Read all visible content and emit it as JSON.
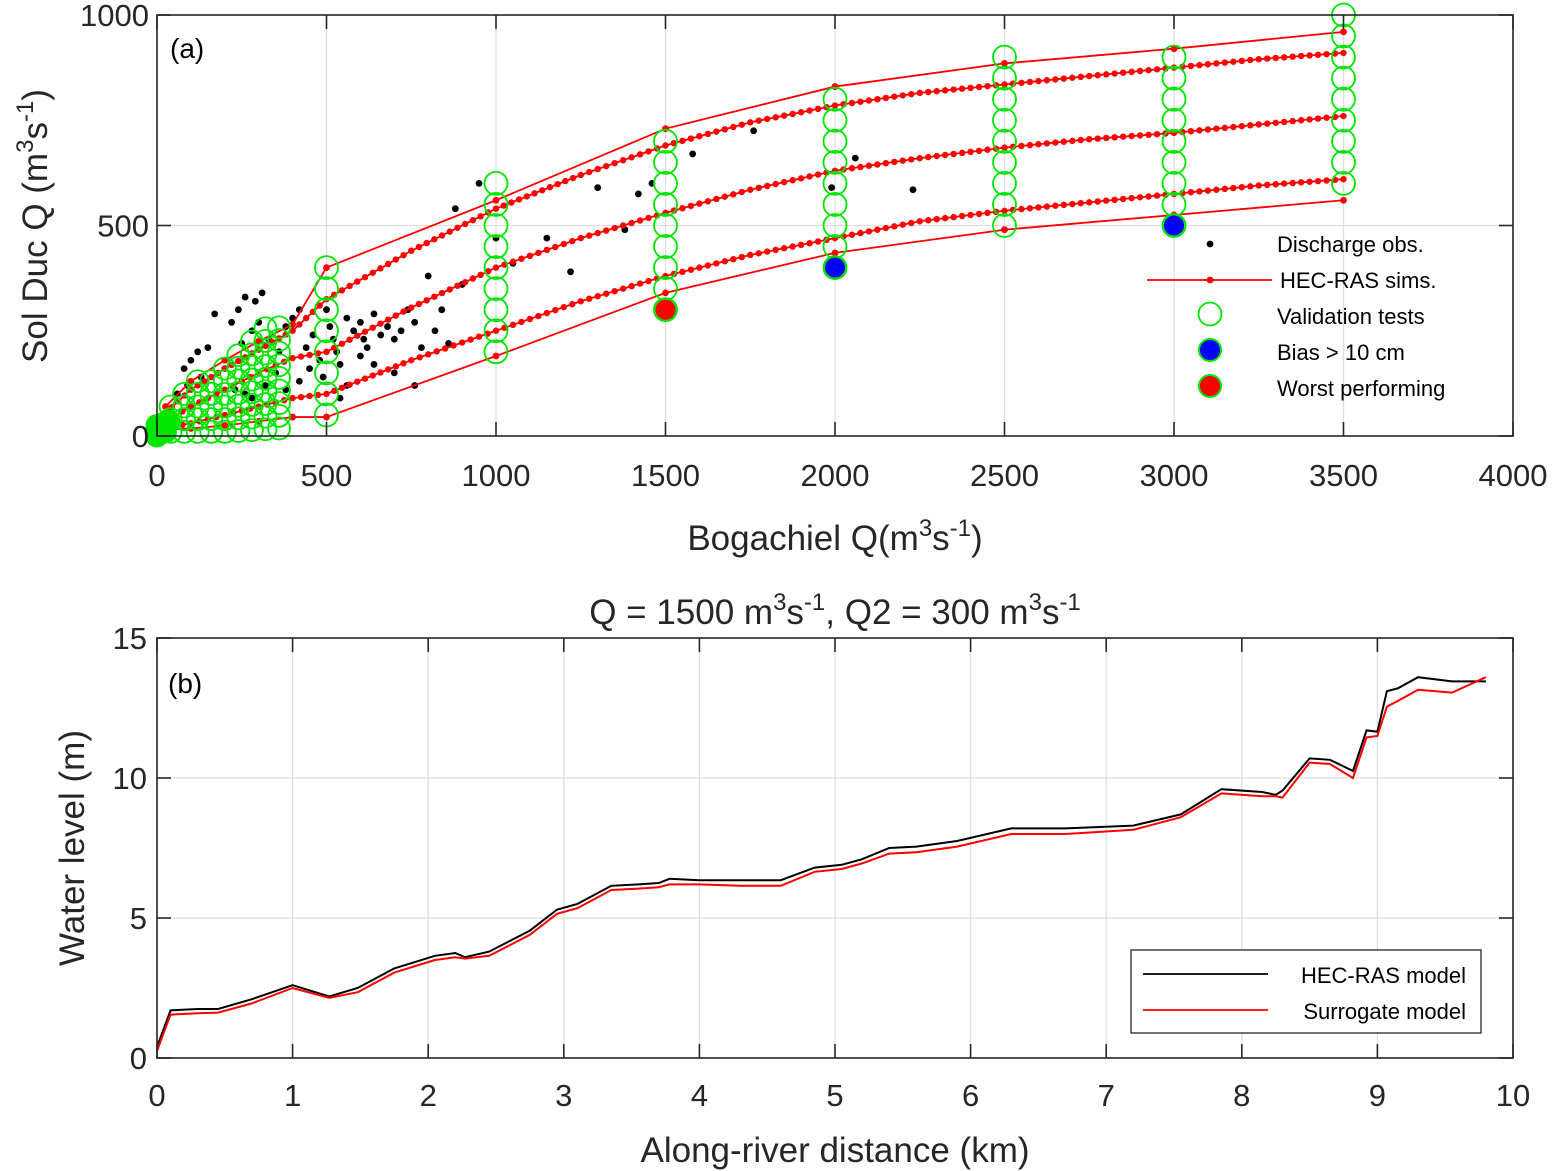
{
  "chart_data": [
    {
      "id": "a",
      "type": "scatter",
      "panel_tag": "(a)",
      "title": "",
      "xlabel": "Bogachiel Q(m^3s^-1)",
      "xlabel_parts": [
        "Bogachiel Q(m",
        "3",
        "s",
        "-1",
        ")"
      ],
      "ylabel": "Sol Duc Q (m^3s^-1)",
      "ylabel_parts": [
        "Sol Duc Q (m",
        "3",
        "s",
        "-1",
        ")"
      ],
      "xlim": [
        0,
        4000
      ],
      "ylim": [
        0,
        1000
      ],
      "xticks": [
        0,
        500,
        1000,
        1500,
        2000,
        2500,
        3000,
        3500,
        4000
      ],
      "yticks": [
        0,
        500,
        1000
      ],
      "grid": true,
      "legend_position": "right-middle",
      "legend": [
        {
          "label": "Discharge obs.",
          "marker": "black-dot"
        },
        {
          "label": "HEC-RAS sims.",
          "marker": "red-line-dot"
        },
        {
          "label": "Validation tests",
          "marker": "green-open-circle"
        },
        {
          "label": "Bias > 10 cm",
          "marker": "blue-filled-circle"
        },
        {
          "label": "Worst performing",
          "marker": "red-filled-circle"
        }
      ],
      "colors": {
        "obs": "#000000",
        "sims": "#ff0000",
        "validation": "#00e600",
        "bias": "#0000ff",
        "worst": "#ff0000"
      },
      "series": [
        {
          "name": "HEC-RAS sims. upper envelope",
          "style": "sparse",
          "x": [
            25,
            100,
            200,
            300,
            400,
            500,
            1000,
            1500,
            2000,
            2500,
            3000,
            3500
          ],
          "y": [
            70,
            130,
            180,
            225,
            265,
            400,
            560,
            730,
            830,
            885,
            920,
            960
          ]
        },
        {
          "name": "HEC-RAS sims. high",
          "style": "dense",
          "x": [
            25,
            100,
            200,
            300,
            400,
            500,
            750,
            1000,
            1250,
            1500,
            1750,
            2000,
            2250,
            2500,
            2750,
            3000,
            3250,
            3500
          ],
          "y": [
            55,
            110,
            160,
            205,
            250,
            325,
            440,
            540,
            620,
            690,
            745,
            785,
            815,
            835,
            855,
            875,
            895,
            910
          ]
        },
        {
          "name": "HEC-RAS sims. mid",
          "style": "dense",
          "x": [
            25,
            100,
            200,
            300,
            400,
            500,
            750,
            1000,
            1250,
            1500,
            1750,
            2000,
            2250,
            2500,
            2750,
            3000,
            3250,
            3500
          ],
          "y": [
            35,
            70,
            110,
            150,
            185,
            200,
            305,
            400,
            470,
            530,
            585,
            630,
            660,
            685,
            705,
            720,
            740,
            760
          ]
        },
        {
          "name": "HEC-RAS sims. low",
          "style": "dense",
          "x": [
            25,
            100,
            200,
            300,
            400,
            500,
            750,
            1000,
            1250,
            1500,
            1750,
            2000,
            2250,
            2500,
            2750,
            3000,
            3250,
            3500
          ],
          "y": [
            20,
            30,
            50,
            70,
            90,
            100,
            180,
            250,
            320,
            380,
            430,
            470,
            510,
            535,
            555,
            575,
            595,
            610
          ]
        },
        {
          "name": "HEC-RAS sims. lower envelope",
          "style": "sparse",
          "x": [
            25,
            100,
            200,
            300,
            400,
            500,
            1000,
            1500,
            2000,
            2500,
            3000,
            3500
          ],
          "y": [
            15,
            18,
            25,
            35,
            45,
            45,
            190,
            340,
            435,
            490,
            525,
            560
          ]
        }
      ],
      "validation_columns": [
        {
          "x": 500,
          "y": [
            50,
            100,
            150,
            200,
            250,
            300,
            350,
            400
          ]
        },
        {
          "x": 1000,
          "y": [
            200,
            250,
            300,
            350,
            400,
            450,
            500,
            550,
            600
          ]
        },
        {
          "x": 1500,
          "y": [
            300,
            350,
            400,
            450,
            500,
            550,
            600,
            650,
            700
          ]
        },
        {
          "x": 2000,
          "y": [
            400,
            450,
            500,
            550,
            600,
            650,
            700,
            750,
            800
          ]
        },
        {
          "x": 2500,
          "y": [
            500,
            550,
            600,
            650,
            700,
            750,
            800,
            850,
            900
          ]
        },
        {
          "x": 3000,
          "y": [
            500,
            550,
            600,
            650,
            700,
            750,
            800,
            850,
            900
          ]
        },
        {
          "x": 3500,
          "y": [
            600,
            650,
            700,
            750,
            800,
            850,
            900,
            950,
            1000
          ]
        }
      ],
      "validation_low_q_cluster": {
        "x_range": [
          0,
          380
        ],
        "x_step": 40,
        "y_step": 30
      },
      "bias_points": [
        {
          "x": 2000,
          "y": 400
        },
        {
          "x": 3000,
          "y": 500
        }
      ],
      "worst_point": {
        "x": 1500,
        "y": 300
      },
      "observations": [
        [
          170,
          290
        ],
        [
          90,
          120
        ],
        [
          60,
          100
        ],
        [
          130,
          140
        ],
        [
          200,
          160
        ],
        [
          250,
          220
        ],
        [
          280,
          250
        ],
        [
          300,
          270
        ],
        [
          330,
          230
        ],
        [
          360,
          200
        ],
        [
          380,
          260
        ],
        [
          400,
          280
        ],
        [
          420,
          300
        ],
        [
          440,
          210
        ],
        [
          460,
          240
        ],
        [
          480,
          180
        ],
        [
          500,
          300
        ],
        [
          510,
          260
        ],
        [
          520,
          230
        ],
        [
          530,
          200
        ],
        [
          540,
          170
        ],
        [
          560,
          280
        ],
        [
          580,
          250
        ],
        [
          600,
          270
        ],
        [
          610,
          230
        ],
        [
          620,
          210
        ],
        [
          640,
          290
        ],
        [
          660,
          240
        ],
        [
          680,
          260
        ],
        [
          700,
          230
        ],
        [
          720,
          250
        ],
        [
          740,
          300
        ],
        [
          760,
          270
        ],
        [
          780,
          210
        ],
        [
          800,
          380
        ],
        [
          820,
          250
        ],
        [
          840,
          300
        ],
        [
          860,
          220
        ],
        [
          880,
          540
        ],
        [
          900,
          360
        ],
        [
          950,
          600
        ],
        [
          1000,
          470
        ],
        [
          1050,
          410
        ],
        [
          1150,
          470
        ],
        [
          1220,
          390
        ],
        [
          1300,
          590
        ],
        [
          1380,
          490
        ],
        [
          1420,
          575
        ],
        [
          1460,
          600
        ],
        [
          1580,
          670
        ],
        [
          1760,
          725
        ],
        [
          1990,
          590
        ],
        [
          2060,
          660
        ],
        [
          2230,
          585
        ],
        [
          490,
          140
        ],
        [
          450,
          160
        ],
        [
          420,
          130
        ],
        [
          380,
          110
        ],
        [
          350,
          150
        ],
        [
          320,
          120
        ],
        [
          540,
          90
        ],
        [
          560,
          120
        ],
        [
          600,
          190
        ],
        [
          640,
          170
        ],
        [
          700,
          150
        ],
        [
          760,
          120
        ],
        [
          310,
          340
        ],
        [
          290,
          320
        ],
        [
          260,
          330
        ],
        [
          240,
          300
        ],
        [
          220,
          270
        ],
        [
          150,
          210
        ],
        [
          120,
          200
        ],
        [
          100,
          180
        ],
        [
          80,
          160
        ],
        [
          230,
          110
        ],
        [
          260,
          100
        ],
        [
          280,
          90
        ]
      ]
    },
    {
      "id": "b",
      "type": "line",
      "panel_tag": "(b)",
      "title": "Q = 1500 m^3s^-1, Q2 = 300 m^3s^-1",
      "title_parts": [
        "Q = 1500 m",
        "3",
        "s",
        "-1",
        ", Q2 = 300 m",
        "3",
        "s",
        "-1"
      ],
      "xlabel": "Along-river distance (km)",
      "ylabel": "Water level (m)",
      "xlim": [
        0,
        10
      ],
      "ylim": [
        0,
        15
      ],
      "xticks": [
        0,
        1,
        2,
        3,
        4,
        5,
        6,
        7,
        8,
        9,
        10
      ],
      "yticks": [
        0,
        5,
        10,
        15
      ],
      "grid": true,
      "legend_position": "bottom-right",
      "series": [
        {
          "name": "HEC-RAS model",
          "color": "#000000",
          "x": [
            0,
            0.1,
            0.3,
            0.45,
            0.7,
            1.0,
            1.27,
            1.48,
            1.75,
            2.05,
            2.2,
            2.27,
            2.45,
            2.75,
            2.95,
            3.1,
            3.35,
            3.55,
            3.7,
            3.78,
            4.0,
            4.3,
            4.6,
            4.85,
            5.05,
            5.2,
            5.4,
            5.6,
            5.9,
            6.3,
            6.7,
            7.2,
            7.55,
            7.85,
            8.15,
            8.25,
            8.3,
            8.5,
            8.65,
            8.82,
            8.92,
            9.0,
            9.07,
            9.15,
            9.3,
            9.55,
            9.8
          ],
          "y": [
            0.4,
            1.7,
            1.75,
            1.75,
            2.1,
            2.6,
            2.2,
            2.5,
            3.2,
            3.65,
            3.75,
            3.6,
            3.8,
            4.55,
            5.3,
            5.5,
            6.15,
            6.2,
            6.25,
            6.4,
            6.35,
            6.35,
            6.35,
            6.8,
            6.9,
            7.1,
            7.5,
            7.55,
            7.75,
            8.2,
            8.2,
            8.3,
            8.7,
            9.6,
            9.5,
            9.4,
            9.55,
            10.7,
            10.65,
            10.25,
            11.7,
            11.65,
            13.1,
            13.2,
            13.6,
            13.45,
            13.45
          ]
        },
        {
          "name": "Surrogate model",
          "color": "#ff0000",
          "x": [
            0,
            0.1,
            0.3,
            0.45,
            0.7,
            1.0,
            1.27,
            1.48,
            1.75,
            2.05,
            2.2,
            2.27,
            2.45,
            2.75,
            2.95,
            3.1,
            3.35,
            3.55,
            3.7,
            3.78,
            4.0,
            4.3,
            4.6,
            4.85,
            5.05,
            5.2,
            5.4,
            5.6,
            5.9,
            6.3,
            6.7,
            7.2,
            7.55,
            7.85,
            8.15,
            8.25,
            8.3,
            8.5,
            8.65,
            8.82,
            8.92,
            9.0,
            9.07,
            9.15,
            9.3,
            9.55,
            9.8
          ],
          "y": [
            0.25,
            1.55,
            1.6,
            1.62,
            1.95,
            2.5,
            2.15,
            2.35,
            3.05,
            3.5,
            3.6,
            3.55,
            3.65,
            4.4,
            5.15,
            5.35,
            6.0,
            6.05,
            6.1,
            6.2,
            6.2,
            6.15,
            6.15,
            6.65,
            6.75,
            6.95,
            7.3,
            7.35,
            7.55,
            8.0,
            8.0,
            8.15,
            8.6,
            9.45,
            9.35,
            9.35,
            9.3,
            10.55,
            10.5,
            10.0,
            11.45,
            11.5,
            12.55,
            12.75,
            13.15,
            13.05,
            13.6
          ]
        }
      ]
    }
  ]
}
